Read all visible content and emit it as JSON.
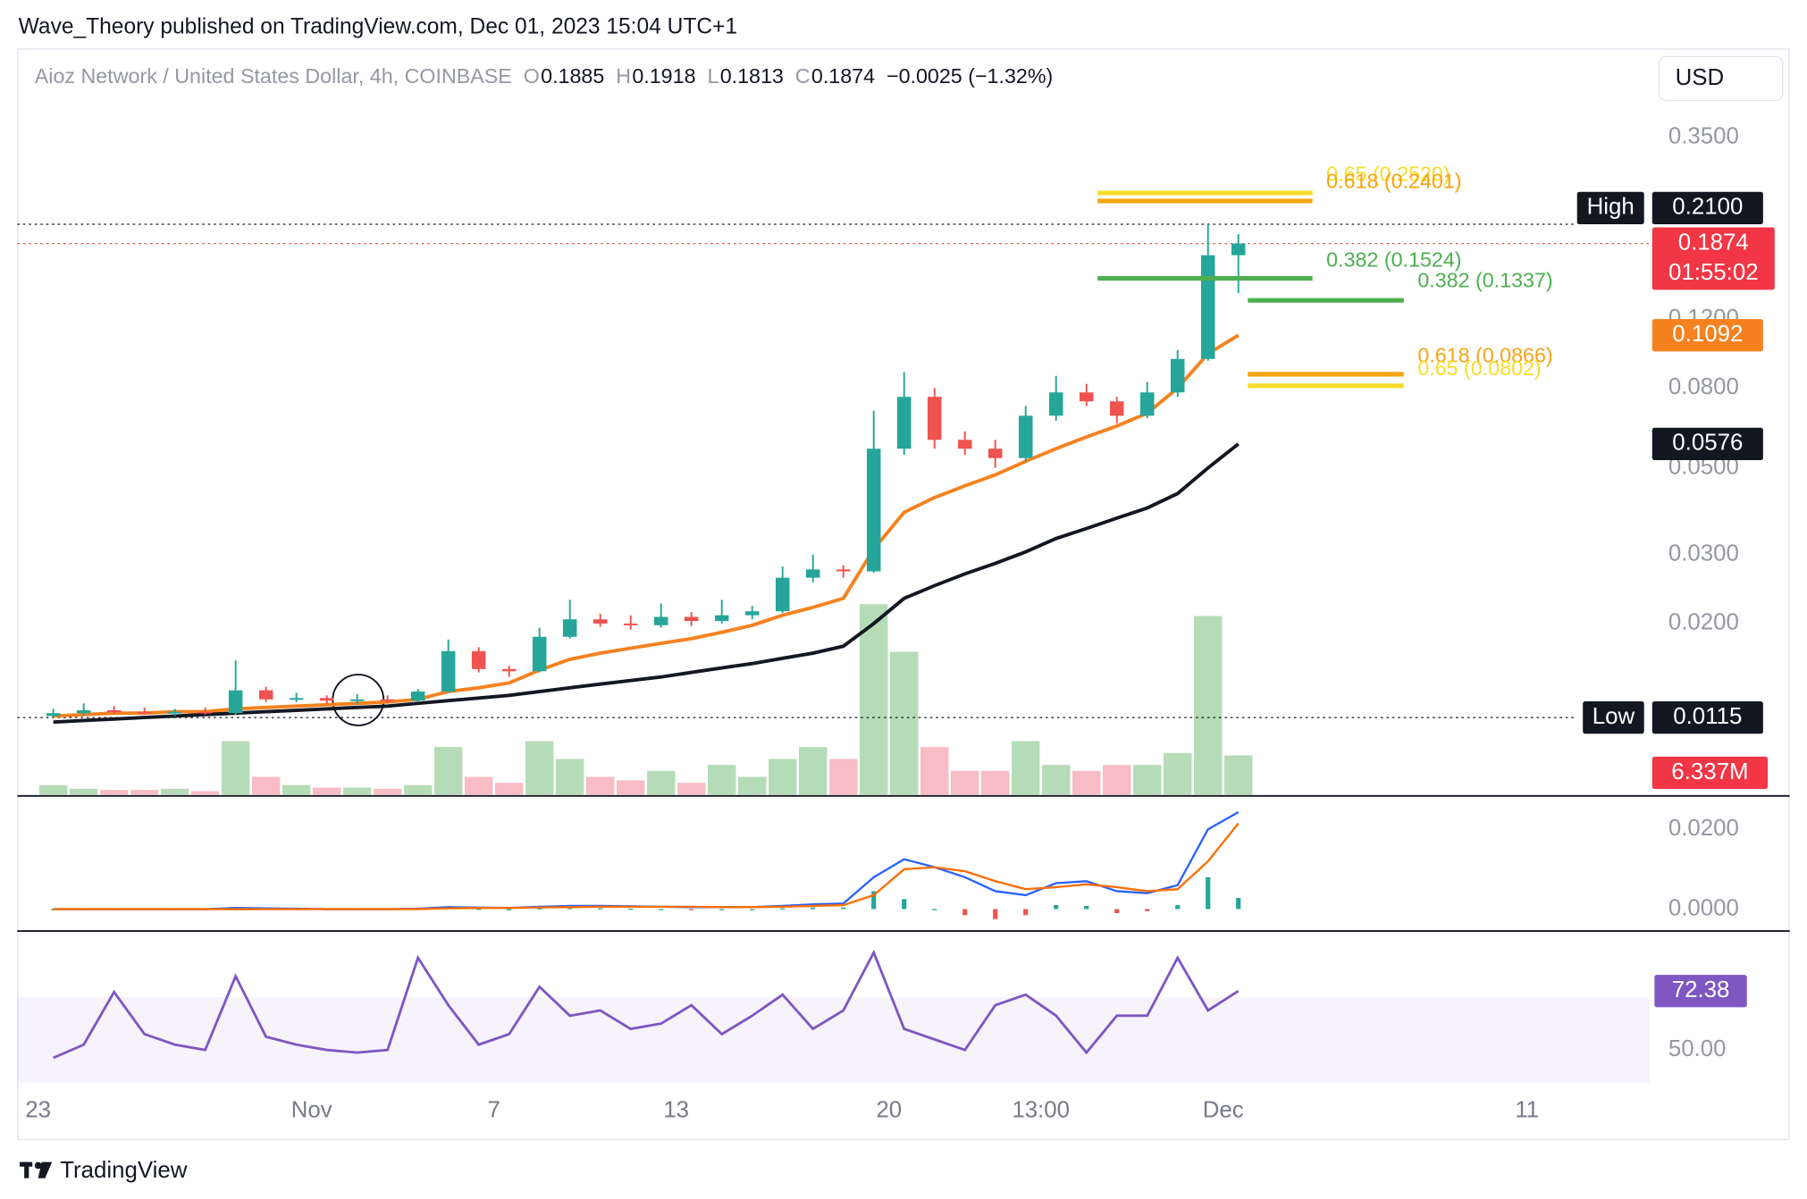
{
  "header": {
    "text": "Wave_Theory published on TradingView.com, Dec 01, 2023 15:04 UTC+1"
  },
  "currency": "USD",
  "footer": {
    "brand": "TradingView"
  },
  "chart_data": [
    {
      "type": "candlestick",
      "legend": {
        "symbol": "Aioz Network / United States Dollar, 4h, COINBASE",
        "fields": [
          {
            "key": "O",
            "value": 0.1885
          },
          {
            "key": "H",
            "value": 0.1918
          },
          {
            "key": "L",
            "value": 0.1813
          },
          {
            "key": "C",
            "value": 0.1874
          }
        ],
        "change": "−0.0025 (−1.32%)"
      },
      "categories": [
        "23",
        null,
        null,
        null,
        null,
        null,
        null,
        null,
        null,
        "Nov",
        null,
        null,
        null,
        null,
        null,
        "7",
        null,
        null,
        null,
        null,
        null,
        "13",
        null,
        null,
        null,
        null,
        null,
        null,
        "20",
        null,
        null,
        null,
        null,
        "13:00",
        null,
        null,
        null,
        null,
        null,
        "Dec",
        null,
        null,
        null,
        null,
        null,
        null,
        null,
        null,
        null,
        "11",
        null,
        null,
        null
      ],
      "open": [
        0.0116,
        0.0118,
        0.012,
        0.0119,
        0.0118,
        0.0119,
        0.0118,
        0.0135,
        0.0128,
        0.0129,
        0.0127,
        0.0128,
        0.0127,
        0.0134,
        0.017,
        0.0153,
        0.0151,
        0.0185,
        0.0205,
        0.02,
        0.0198,
        0.0208,
        0.0203,
        0.021,
        0.0215,
        0.0262,
        0.0275,
        0.0272,
        0.056,
        0.076,
        0.059,
        0.056,
        0.053,
        0.068,
        0.078,
        0.074,
        0.068,
        0.078,
        0.095,
        0.175,
        null,
        null,
        null,
        null,
        null,
        null,
        null,
        null,
        null,
        null,
        null,
        null,
        null
      ],
      "high": [
        0.0121,
        0.0125,
        0.0123,
        0.0122,
        0.0121,
        0.0122,
        0.0161,
        0.0138,
        0.0133,
        0.0131,
        0.0132,
        0.0131,
        0.0136,
        0.0182,
        0.0174,
        0.0156,
        0.0195,
        0.023,
        0.0212,
        0.021,
        0.0225,
        0.0214,
        0.023,
        0.0222,
        0.028,
        0.03,
        0.0282,
        0.07,
        0.088,
        0.08,
        0.062,
        0.059,
        0.072,
        0.086,
        0.082,
        0.076,
        0.083,
        0.1,
        0.21,
        0.198,
        null,
        null,
        null,
        null,
        null,
        null,
        null,
        null,
        null,
        null,
        null,
        null,
        null
      ],
      "low": [
        0.0115,
        0.0116,
        0.0117,
        0.0117,
        0.0116,
        0.0117,
        0.0117,
        0.0126,
        0.0126,
        0.0125,
        0.0124,
        0.0125,
        0.0126,
        0.0133,
        0.015,
        0.0146,
        0.015,
        0.0183,
        0.0196,
        0.0193,
        0.0195,
        0.0197,
        0.02,
        0.0205,
        0.0213,
        0.0255,
        0.0262,
        0.027,
        0.054,
        0.056,
        0.054,
        0.05,
        0.052,
        0.066,
        0.072,
        0.065,
        0.067,
        0.076,
        0.094,
        0.14,
        null,
        null,
        null,
        null,
        null,
        null,
        null,
        null,
        null,
        null,
        null,
        null,
        null
      ],
      "close": [
        0.0118,
        0.012,
        0.0119,
        0.0118,
        0.0119,
        0.0118,
        0.0135,
        0.0128,
        0.0129,
        0.0127,
        0.0128,
        0.0127,
        0.0134,
        0.017,
        0.0153,
        0.0151,
        0.0185,
        0.0205,
        0.02,
        0.0198,
        0.0208,
        0.0203,
        0.021,
        0.0215,
        0.0262,
        0.0275,
        0.0272,
        0.056,
        0.076,
        0.059,
        0.056,
        0.053,
        0.068,
        0.078,
        0.074,
        0.068,
        0.078,
        0.095,
        0.175,
        0.1874,
        null,
        null,
        null,
        null,
        null,
        null,
        null,
        null,
        null,
        null,
        null,
        null,
        null
      ],
      "up_color": "#26a69a",
      "down_color": "#ef5350",
      "series": [
        {
          "color": "#f5821f",
          "values": [
            0.0116,
            0.0117,
            0.0118,
            0.0118,
            0.0119,
            0.0119,
            0.0121,
            0.0122,
            0.0123,
            0.0124,
            0.0125,
            0.0126,
            0.0128,
            0.0134,
            0.0137,
            0.0141,
            0.0152,
            0.0162,
            0.0168,
            0.0173,
            0.0178,
            0.0183,
            0.019,
            0.0198,
            0.021,
            0.022,
            0.0232,
            0.031,
            0.0385,
            0.042,
            0.045,
            0.048,
            0.052,
            0.056,
            0.06,
            0.064,
            0.069,
            0.08,
            0.098,
            0.1092,
            null,
            null,
            null,
            null,
            null,
            null,
            null,
            null,
            null,
            null,
            null,
            null,
            null
          ]
        },
        {
          "color": "#131722",
          "values": [
            0.0112,
            0.0113,
            0.0114,
            0.0115,
            0.0116,
            0.0117,
            0.0118,
            0.0119,
            0.012,
            0.0121,
            0.0122,
            0.0123,
            0.0125,
            0.0127,
            0.0129,
            0.0131,
            0.0134,
            0.0137,
            0.014,
            0.0143,
            0.0146,
            0.015,
            0.0154,
            0.0158,
            0.0163,
            0.0168,
            0.0175,
            0.02,
            0.0232,
            0.025,
            0.0268,
            0.0285,
            0.0305,
            0.033,
            0.035,
            0.0372,
            0.0395,
            0.043,
            0.05,
            0.0576,
            null,
            null,
            null,
            null,
            null,
            null,
            null,
            null,
            null,
            null,
            null,
            null,
            null
          ]
        }
      ],
      "volume": {
        "values": [
          1536000,
          960000,
          768000,
          768000,
          960000,
          576000,
          8640000,
          2880000,
          1536000,
          1152000,
          1152000,
          960000,
          1536000,
          7680000,
          2880000,
          1920000,
          8640000,
          5760000,
          2880000,
          2304000,
          3840000,
          1920000,
          4800000,
          2880000,
          5760000,
          7680000,
          5760000,
          30720000,
          23040000,
          7680000,
          3840000,
          3840000,
          8640000,
          4800000,
          3840000,
          4800000,
          4800000,
          6720000,
          28800000,
          6337000,
          null,
          null,
          null,
          null,
          null,
          null,
          null,
          null,
          null,
          null,
          null,
          null,
          null
        ],
        "badge_label": "6.337M",
        "up_color": "#b5dcb7",
        "down_color": "#f7bcc4"
      },
      "log_scale": true,
      "grid": false,
      "ylim": [
        0.0073,
        0.579
      ],
      "yticks": [
        {
          "value": 0.35,
          "label": "0.3500"
        },
        {
          "value": 0.12,
          "label": "0.1200"
        },
        {
          "value": 0.08,
          "label": "0.0800"
        },
        {
          "value": 0.05,
          "label": "0.0500"
        },
        {
          "value": 0.03,
          "label": "0.0300"
        },
        {
          "value": 0.02,
          "label": "0.0200"
        }
      ],
      "high_marker": {
        "title": "High",
        "value": 0.21,
        "label": "0.2100"
      },
      "low_marker": {
        "title": "Low"
      },
      "countdown": "01:55:02",
      "annotations": [
        {
          "text": "0.65 (0.2520)",
          "color": "#f7dd2a"
        },
        {
          "text": "0.618 (0.2401)",
          "color": "#f5a313"
        },
        {
          "text": "0.382 (0.1524)",
          "color": "#4caf50"
        },
        {
          "text": "0.382 (0.1337)",
          "color": "#4caf50"
        },
        {
          "text": "0.618 (0.0866)",
          "color": "#f5a313"
        },
        {
          "text": "0.65 (0.0802)",
          "color": "#f7dd2a"
        }
      ]
    },
    {
      "type": "macd",
      "ylim": [
        -0.0052,
        0.0281
      ],
      "yticks": [
        {
          "value": 0.02,
          "label": "0.0200"
        },
        {
          "value": 0,
          "label": "0.0000"
        }
      ],
      "series": [
        {
          "color": "#2962ff",
          "values": [
            0,
            0,
            0,
            0,
            0,
            0,
            0.0003,
            0.0002,
            0.0001,
            0,
            0,
            0,
            0.0001,
            0.0005,
            0.0004,
            0.0003,
            0.0006,
            0.0008,
            0.0008,
            0.0007,
            0.0006,
            0.0005,
            0.0005,
            0.0005,
            0.0008,
            0.0012,
            0.0014,
            0.008,
            0.0125,
            0.0105,
            0.008,
            0.0045,
            0.0035,
            0.0065,
            0.007,
            0.0045,
            0.004,
            0.006,
            0.02,
            0.0243,
            null,
            null,
            null,
            null,
            null,
            null,
            null,
            null,
            null,
            null,
            null,
            null,
            null
          ]
        },
        {
          "color": "#ff6d00",
          "values": [
            0,
            0,
            0,
            0,
            0,
            0,
            0,
            0,
            0,
            0,
            0,
            0,
            0,
            0.0002,
            0.0003,
            0.0003,
            0.0004,
            0.0005,
            0.0006,
            0.0006,
            0.0006,
            0.0006,
            0.0005,
            0.0005,
            0.0006,
            0.0008,
            0.001,
            0.0035,
            0.01,
            0.0105,
            0.0095,
            0.007,
            0.005,
            0.0055,
            0.0062,
            0.0055,
            0.0045,
            0.005,
            0.012,
            0.0215,
            null,
            null,
            null,
            null,
            null,
            null,
            null,
            null,
            null,
            null,
            null,
            null,
            null
          ]
        }
      ],
      "histogram": {
        "values": [
          0,
          0,
          0,
          0,
          0,
          0,
          0.0003,
          0.0002,
          0.0001,
          0,
          0,
          0,
          0.0001,
          0.0003,
          0.0001,
          0,
          0.0002,
          0.0003,
          0.0002,
          0.0001,
          0,
          -0.0001,
          0,
          0,
          0.0002,
          0.0004,
          0.0004,
          0.0045,
          0.0025,
          0,
          -0.0015,
          -0.0025,
          -0.0015,
          0.001,
          0.0008,
          -0.001,
          -0.0005,
          0.001,
          0.008,
          0.0028,
          null,
          null,
          null,
          null,
          null,
          null,
          null,
          null,
          null,
          null,
          null,
          null,
          null
        ],
        "up_color": "#26a69a",
        "down_color": "#ef5350"
      }
    },
    {
      "type": "line",
      "ylim": [
        37.7,
        94.3
      ],
      "yticks": [
        {
          "value": 50,
          "label": "50.00"
        }
      ],
      "band": [
        30,
        70
      ],
      "band_color": "#7e57c2",
      "series": [
        {
          "color": "#7e57c2",
          "values": [
            47,
            52,
            72,
            56,
            52,
            50,
            78,
            55,
            52,
            50,
            49,
            50,
            85,
            67,
            52,
            56,
            74,
            63,
            65,
            58,
            60,
            67,
            56,
            63,
            71,
            58,
            65,
            87,
            58,
            54,
            50,
            67,
            71,
            63,
            49,
            63,
            63,
            85,
            65,
            72.38,
            null,
            null,
            null,
            null,
            null,
            null,
            null,
            null,
            null,
            null,
            null,
            null,
            null
          ]
        }
      ]
    }
  ]
}
